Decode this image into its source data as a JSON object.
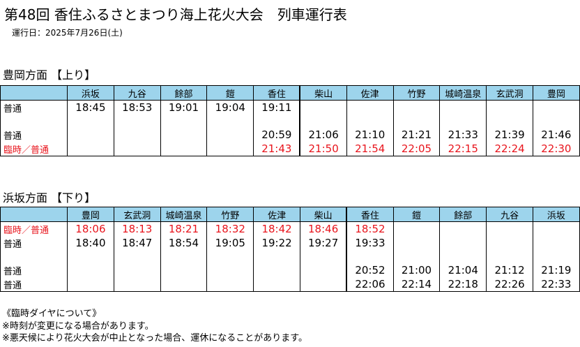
{
  "title": "第48回 香住ふるさとまつり海上花火大会　列車運行表",
  "operation_date": "運行日：2025年7月26日(土)",
  "up": {
    "heading": "豊岡方面 【上り】",
    "stations": [
      "浜坂",
      "九谷",
      "餘部",
      "鎧",
      "香住",
      "柴山",
      "佐津",
      "竹野",
      "城崎温泉",
      "玄武洞",
      "豊岡"
    ],
    "rows": [
      {
        "label": "普通",
        "red": false,
        "gap": false,
        "times": [
          "18:45",
          "18:53",
          "19:01",
          "19:04",
          "19:11",
          "",
          "",
          "",
          "",
          "",
          ""
        ]
      },
      {
        "label": "",
        "red": false,
        "gap": true,
        "times": [
          "",
          "",
          "",
          "",
          "",
          "",
          "",
          "",
          "",
          "",
          ""
        ]
      },
      {
        "label": "普通",
        "red": false,
        "gap": false,
        "times": [
          "",
          "",
          "",
          "",
          "20:59",
          "21:06",
          "21:10",
          "21:21",
          "21:33",
          "21:39",
          "21:46"
        ]
      },
      {
        "label": "臨時／普通",
        "red": true,
        "gap": false,
        "times": [
          "",
          "",
          "",
          "",
          "21:43",
          "21:50",
          "21:54",
          "22:05",
          "22:15",
          "22:24",
          "22:30"
        ]
      }
    ]
  },
  "down": {
    "heading": "浜坂方面 【下り】",
    "stations": [
      "豊岡",
      "玄武洞",
      "城崎温泉",
      "竹野",
      "佐津",
      "柴山",
      "香住",
      "鎧",
      "餘部",
      "九谷",
      "浜坂"
    ],
    "rows": [
      {
        "label": "臨時／普通",
        "red": true,
        "gap": false,
        "times": [
          "18:06",
          "18:13",
          "18:21",
          "18:32",
          "18:42",
          "18:46",
          "18:52",
          "",
          "",
          "",
          ""
        ]
      },
      {
        "label": "普通",
        "red": false,
        "gap": false,
        "times": [
          "18:40",
          "18:47",
          "18:54",
          "19:05",
          "19:22",
          "19:27",
          "19:33",
          "",
          "",
          "",
          ""
        ]
      },
      {
        "label": "",
        "red": false,
        "gap": true,
        "times": [
          "",
          "",
          "",
          "",
          "",
          "",
          "",
          "",
          "",
          "",
          ""
        ]
      },
      {
        "label": "普通",
        "red": false,
        "gap": false,
        "times": [
          "",
          "",
          "",
          "",
          "",
          "",
          "20:52",
          "21:00",
          "21:04",
          "21:12",
          "21:19"
        ]
      },
      {
        "label": "普通",
        "red": false,
        "gap": false,
        "times": [
          "",
          "",
          "",
          "",
          "",
          "",
          "22:06",
          "22:14",
          "22:18",
          "22:26",
          "22:33"
        ]
      }
    ]
  },
  "notes": [
    "《臨時ダイヤについて》",
    "※時刻が変更になる場合があります。",
    "※悪天候により花火大会が中止となった場合、運休になることがあります。"
  ],
  "colors": {
    "header_bg": "#9dd4ec",
    "rinji_red": "#e8141c"
  }
}
